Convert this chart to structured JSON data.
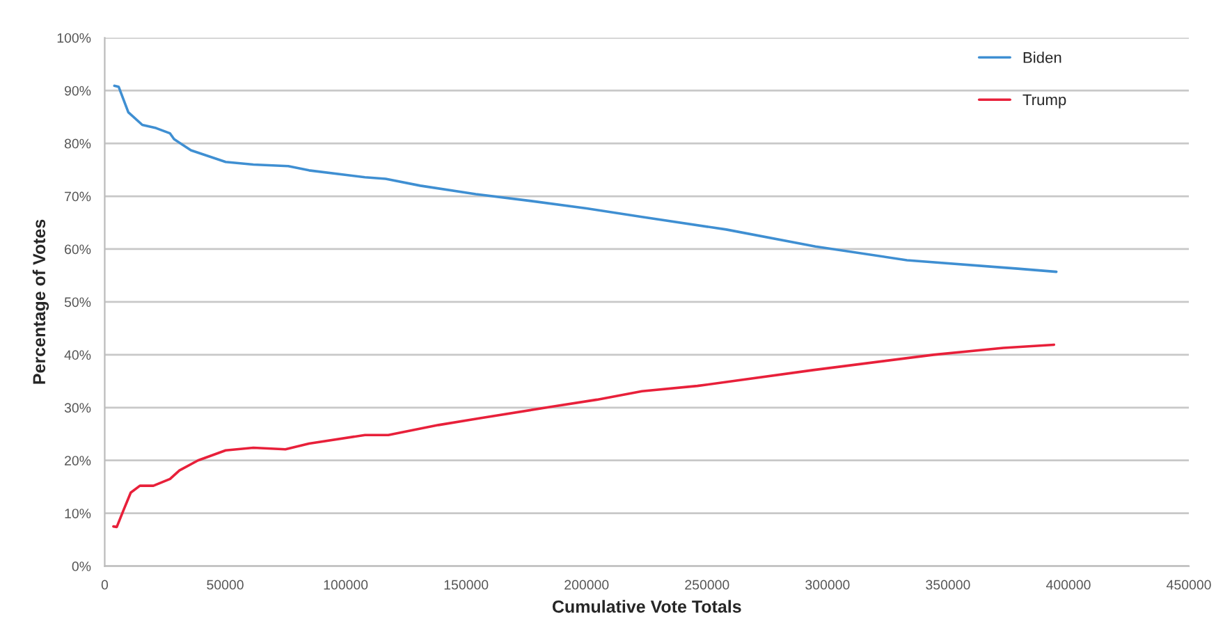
{
  "chart_data": {
    "type": "line",
    "xlabel": "Cumulative Vote Totals",
    "ylabel": "Percentage of Votes",
    "xlim": [
      0,
      450000
    ],
    "xticks": [
      0,
      50000,
      100000,
      150000,
      200000,
      250000,
      300000,
      350000,
      400000,
      450000
    ],
    "ylim": [
      0,
      100
    ],
    "yticks": [
      {
        "value": 0,
        "label": "0%"
      },
      {
        "value": 10,
        "label": "10%"
      },
      {
        "value": 20,
        "label": "20%"
      },
      {
        "value": 30,
        "label": "30%"
      },
      {
        "value": 40,
        "label": "40%"
      },
      {
        "value": 50,
        "label": "50%"
      },
      {
        "value": 60,
        "label": "60%"
      },
      {
        "value": 70,
        "label": "70%"
      },
      {
        "value": 80,
        "label": "80%"
      },
      {
        "value": 90,
        "label": "90%"
      },
      {
        "value": 100,
        "label": "100%"
      }
    ],
    "grid": "y",
    "legend": "top right",
    "marker": "none",
    "line_style": "solid",
    "series": [
      {
        "name": "Biden",
        "color": "#3f8fd2",
        "x": [
          4000,
          5800,
          9800,
          15600,
          21300,
          27100,
          28800,
          35800,
          50200,
          61700,
          76200,
          84800,
          108000,
          116600,
          131000,
          154000,
          177000,
          200000,
          223000,
          258000,
          295000,
          333000,
          379000,
          395000
        ],
        "values": [
          90.9,
          90.7,
          85.9,
          83.5,
          82.9,
          81.9,
          80.8,
          78.7,
          76.5,
          76.0,
          75.7,
          74.9,
          73.6,
          73.3,
          72.0,
          70.4,
          69.1,
          67.7,
          66.1,
          63.7,
          60.5,
          57.9,
          56.3,
          55.7
        ]
      },
      {
        "name": "Trump",
        "color": "#e8203a",
        "x": [
          3600,
          5000,
          7900,
          10800,
          14600,
          20200,
          27100,
          31000,
          38700,
          50200,
          61700,
          75000,
          84800,
          108000,
          117700,
          138500,
          155800,
          184600,
          204300,
          223000,
          246000,
          294000,
          344000,
          373000,
          394000
        ],
        "values": [
          7.5,
          7.4,
          10.7,
          13.9,
          15.2,
          15.2,
          16.5,
          18.1,
          20.0,
          21.9,
          22.4,
          22.1,
          23.2,
          24.8,
          24.8,
          26.7,
          28.0,
          30.1,
          31.5,
          33.1,
          34.1,
          37.1,
          40.0,
          41.3,
          41.9
        ]
      }
    ]
  }
}
